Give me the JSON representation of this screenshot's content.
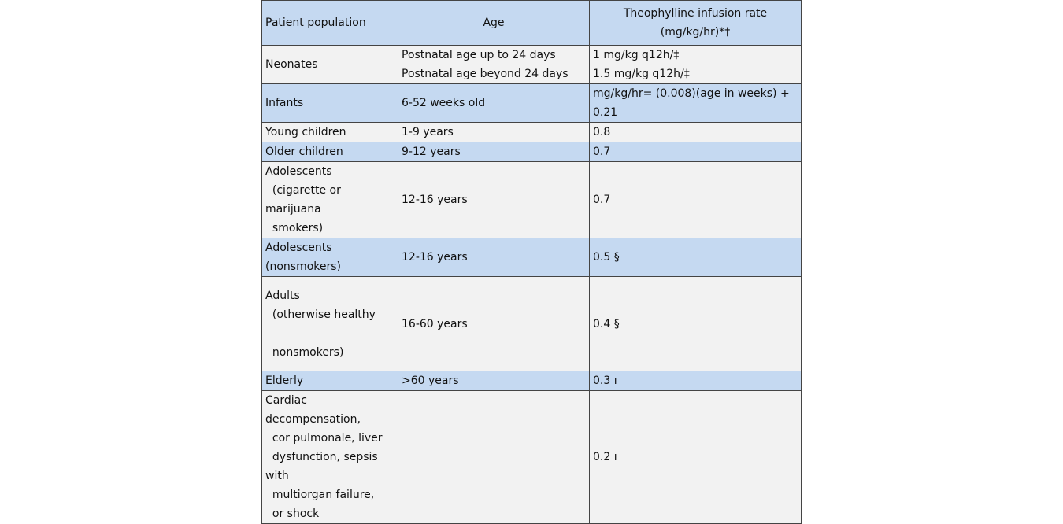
{
  "table": {
    "header": [
      [
        "Patient population"
      ],
      [
        "Age"
      ],
      [
        "Theophylline infusion rate",
        "(mg/kg/hr)*†"
      ]
    ],
    "rows": [
      [
        [
          "Neonates"
        ],
        [
          "Postnatal age up to 24 days",
          "Postnatal age beyond 24 days"
        ],
        [
          "1 mg/kg q12h/‡",
          "1.5 mg/kg q12h/‡"
        ]
      ],
      [
        [
          "Infants"
        ],
        [
          "6-52 weeks old"
        ],
        [
          "mg/kg/hr= (0.008)(age in weeks) +",
          "0.21"
        ]
      ],
      [
        [
          "Young children"
        ],
        [
          "1-9 years"
        ],
        [
          "0.8"
        ]
      ],
      [
        [
          "Older children"
        ],
        [
          "9-12 years"
        ],
        [
          "0.7"
        ]
      ],
      [
        [
          "Adolescents",
          "  (cigarette or",
          "marijuana",
          "  smokers)"
        ],
        [
          "12-16 years"
        ],
        [
          "0.7"
        ]
      ],
      [
        [
          "Adolescents",
          "(nonsmokers)"
        ],
        [
          "12-16 years"
        ],
        [
          "0.5 §"
        ]
      ],
      [
        [
          "Adults",
          "  (otherwise healthy",
          "  nonsmokers)"
        ],
        [
          "16-60 years"
        ],
        [
          "0.4 §"
        ]
      ],
      [
        [
          "Elderly"
        ],
        [
          ">60 years"
        ],
        [
          "0.3 ı"
        ]
      ],
      [
        [
          "Cardiac",
          "decompensation,",
          "  cor pulmonale, liver",
          "  dysfunction, sepsis",
          "with",
          "  multiorgan failure,",
          "  or shock"
        ],
        [],
        [
          "0.2 ı"
        ]
      ]
    ]
  }
}
